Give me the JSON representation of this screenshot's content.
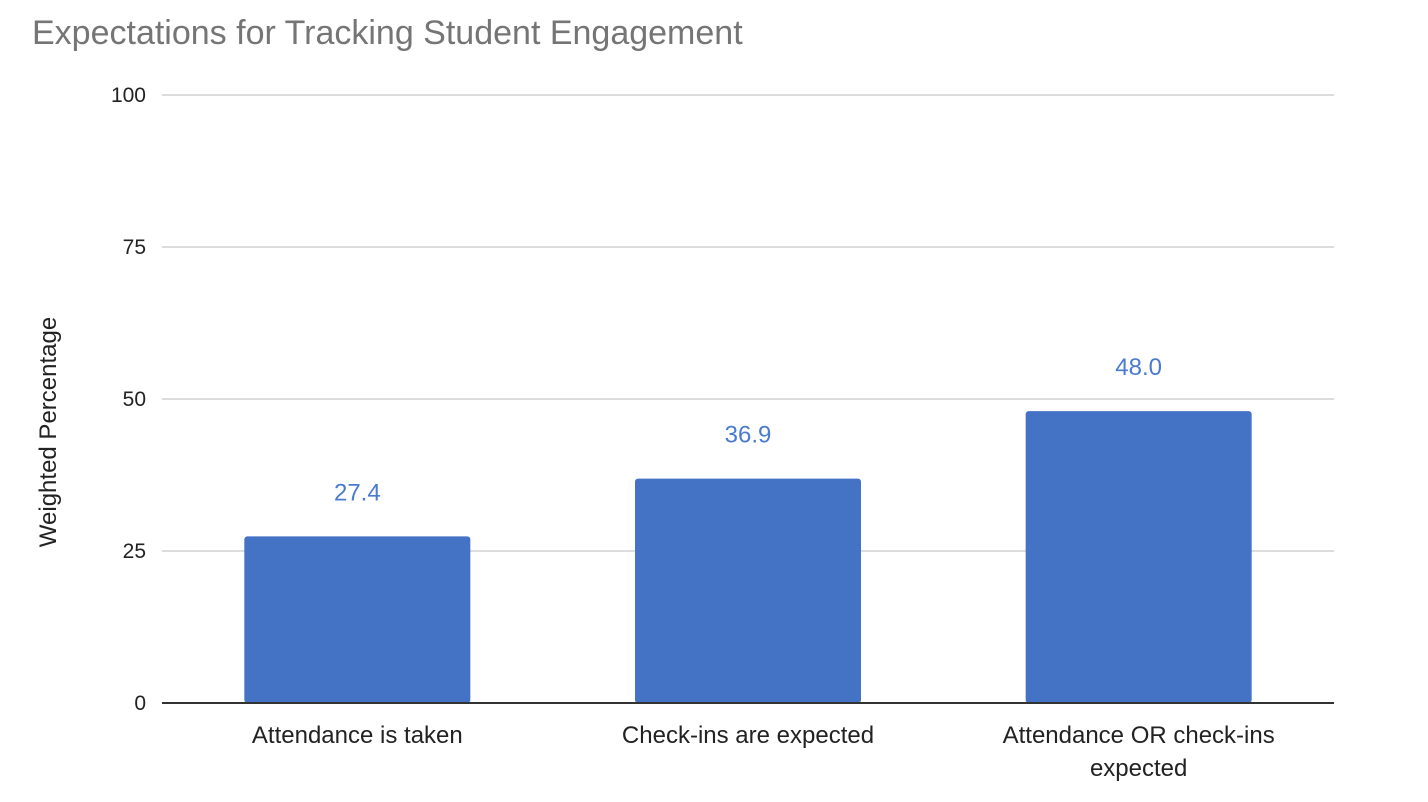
{
  "chart_data": {
    "type": "bar",
    "title": "Expectations for Tracking Student Engagement",
    "xlabel": "",
    "ylabel": "Weighted Percentage",
    "categories": [
      [
        "Attendance is taken"
      ],
      [
        "Check-ins are expected"
      ],
      [
        "Attendance OR check-ins",
        "expected"
      ]
    ],
    "values": [
      27.4,
      36.9,
      48.0
    ],
    "value_labels": [
      "27.4",
      "36.9",
      "48.0"
    ],
    "ylim": [
      0,
      100
    ],
    "yticks": [
      0,
      25,
      50,
      75,
      100
    ],
    "ytick_labels": [
      "0",
      "25",
      "50",
      "75",
      "100"
    ],
    "grid": true,
    "legend": "none",
    "colors": {
      "bar": "#4472c4",
      "data_label": "#4a7bd0",
      "grid": "#d0d0d0",
      "baseline": "#333333",
      "title": "#757575"
    }
  }
}
